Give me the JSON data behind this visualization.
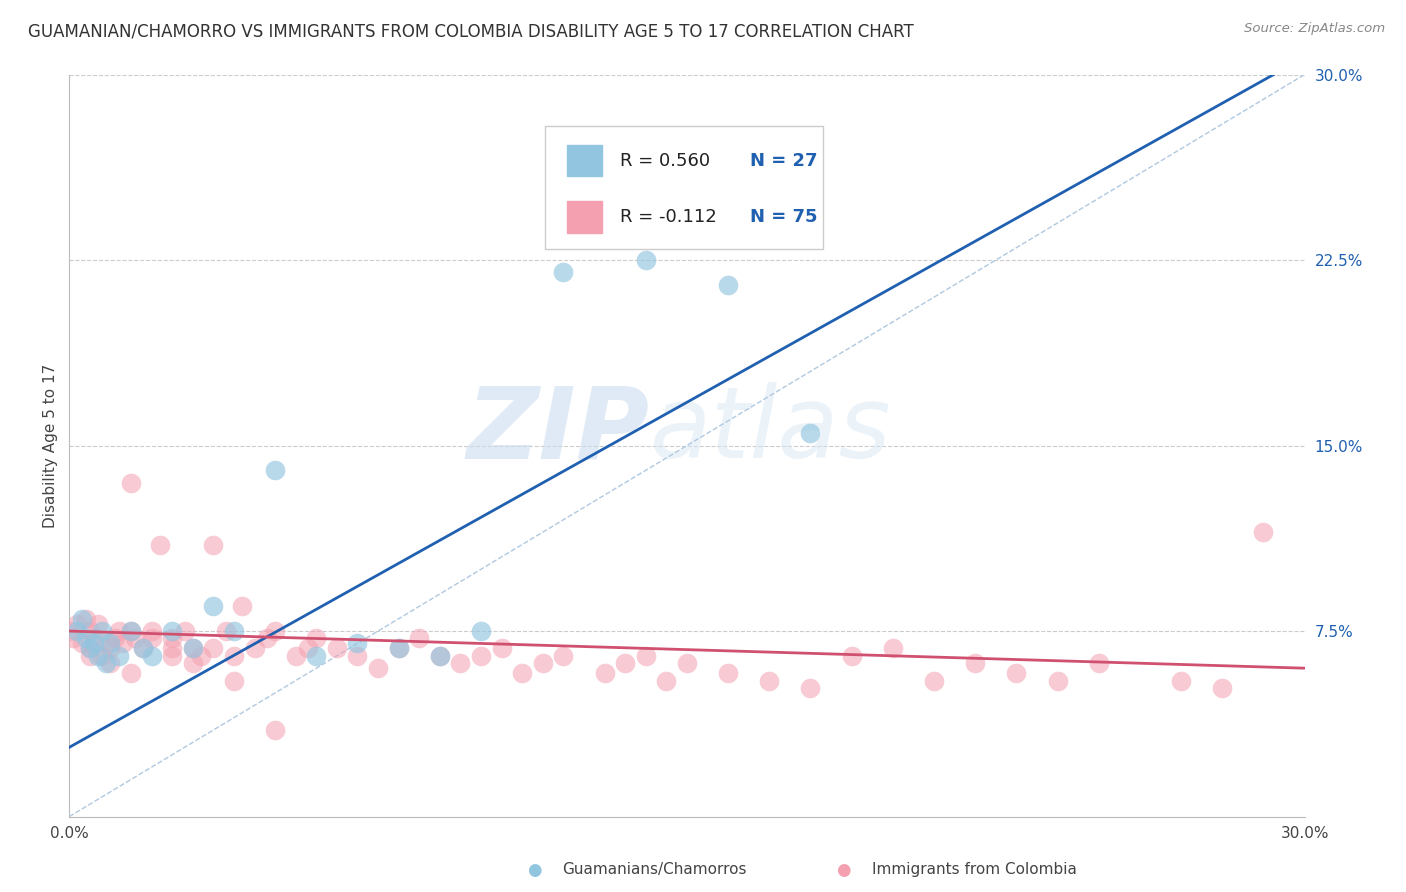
{
  "title": "GUAMANIAN/CHAMORRO VS IMMIGRANTS FROM COLOMBIA DISABILITY AGE 5 TO 17 CORRELATION CHART",
  "source": "Source: ZipAtlas.com",
  "ylabel": "Disability Age 5 to 17",
  "xlim": [
    0.0,
    0.3
  ],
  "ylim": [
    0.0,
    0.3
  ],
  "ytick_labels_right": [
    "30.0%",
    "22.5%",
    "15.0%",
    "7.5%"
  ],
  "ytick_vals_right": [
    0.3,
    0.225,
    0.15,
    0.075
  ],
  "legend1_R": "0.560",
  "legend1_N": "27",
  "legend2_R": "-0.112",
  "legend2_N": "75",
  "color_blue": "#92c5e0",
  "color_pink": "#f4a0b0",
  "line_blue": "#2060b0",
  "line_pink": "#d05070",
  "diagonal_color": "#b0c8e0",
  "watermark_zip": "ZIP",
  "watermark_atlas": "atlas",
  "group1_label": "Guamanians/Chamorros",
  "group2_label": "Immigrants from Colombia",
  "guam_x": [
    0.002,
    0.003,
    0.004,
    0.005,
    0.006,
    0.007,
    0.008,
    0.009,
    0.01,
    0.012,
    0.015,
    0.018,
    0.02,
    0.025,
    0.03,
    0.035,
    0.04,
    0.05,
    0.06,
    0.07,
    0.08,
    0.09,
    0.1,
    0.12,
    0.14,
    0.16,
    0.18
  ],
  "guam_y": [
    0.075,
    0.08,
    0.072,
    0.068,
    0.07,
    0.065,
    0.075,
    0.062,
    0.07,
    0.065,
    0.075,
    0.068,
    0.065,
    0.075,
    0.068,
    0.085,
    0.075,
    0.14,
    0.065,
    0.07,
    0.068,
    0.065,
    0.075,
    0.22,
    0.225,
    0.215,
    0.155
  ],
  "colombia_x": [
    0.0,
    0.001,
    0.002,
    0.003,
    0.004,
    0.005,
    0.005,
    0.006,
    0.007,
    0.008,
    0.009,
    0.01,
    0.011,
    0.012,
    0.013,
    0.015,
    0.015,
    0.016,
    0.018,
    0.02,
    0.022,
    0.025,
    0.025,
    0.028,
    0.03,
    0.032,
    0.035,
    0.035,
    0.038,
    0.04,
    0.042,
    0.045,
    0.048,
    0.05,
    0.055,
    0.058,
    0.06,
    0.065,
    0.07,
    0.075,
    0.08,
    0.085,
    0.09,
    0.095,
    0.1,
    0.105,
    0.11,
    0.115,
    0.12,
    0.13,
    0.135,
    0.14,
    0.145,
    0.15,
    0.16,
    0.17,
    0.18,
    0.19,
    0.2,
    0.21,
    0.22,
    0.23,
    0.24,
    0.25,
    0.27,
    0.28,
    0.29,
    0.005,
    0.01,
    0.015,
    0.02,
    0.025,
    0.03,
    0.04,
    0.05
  ],
  "colombia_y": [
    0.075,
    0.072,
    0.078,
    0.07,
    0.08,
    0.075,
    0.068,
    0.072,
    0.078,
    0.065,
    0.07,
    0.068,
    0.072,
    0.075,
    0.07,
    0.135,
    0.075,
    0.072,
    0.068,
    0.075,
    0.11,
    0.065,
    0.072,
    0.075,
    0.068,
    0.065,
    0.11,
    0.068,
    0.075,
    0.065,
    0.085,
    0.068,
    0.072,
    0.075,
    0.065,
    0.068,
    0.072,
    0.068,
    0.065,
    0.06,
    0.068,
    0.072,
    0.065,
    0.062,
    0.065,
    0.068,
    0.058,
    0.062,
    0.065,
    0.058,
    0.062,
    0.065,
    0.055,
    0.062,
    0.058,
    0.055,
    0.052,
    0.065,
    0.068,
    0.055,
    0.062,
    0.058,
    0.055,
    0.062,
    0.055,
    0.052,
    0.115,
    0.065,
    0.062,
    0.058,
    0.072,
    0.068,
    0.062,
    0.055,
    0.035
  ]
}
